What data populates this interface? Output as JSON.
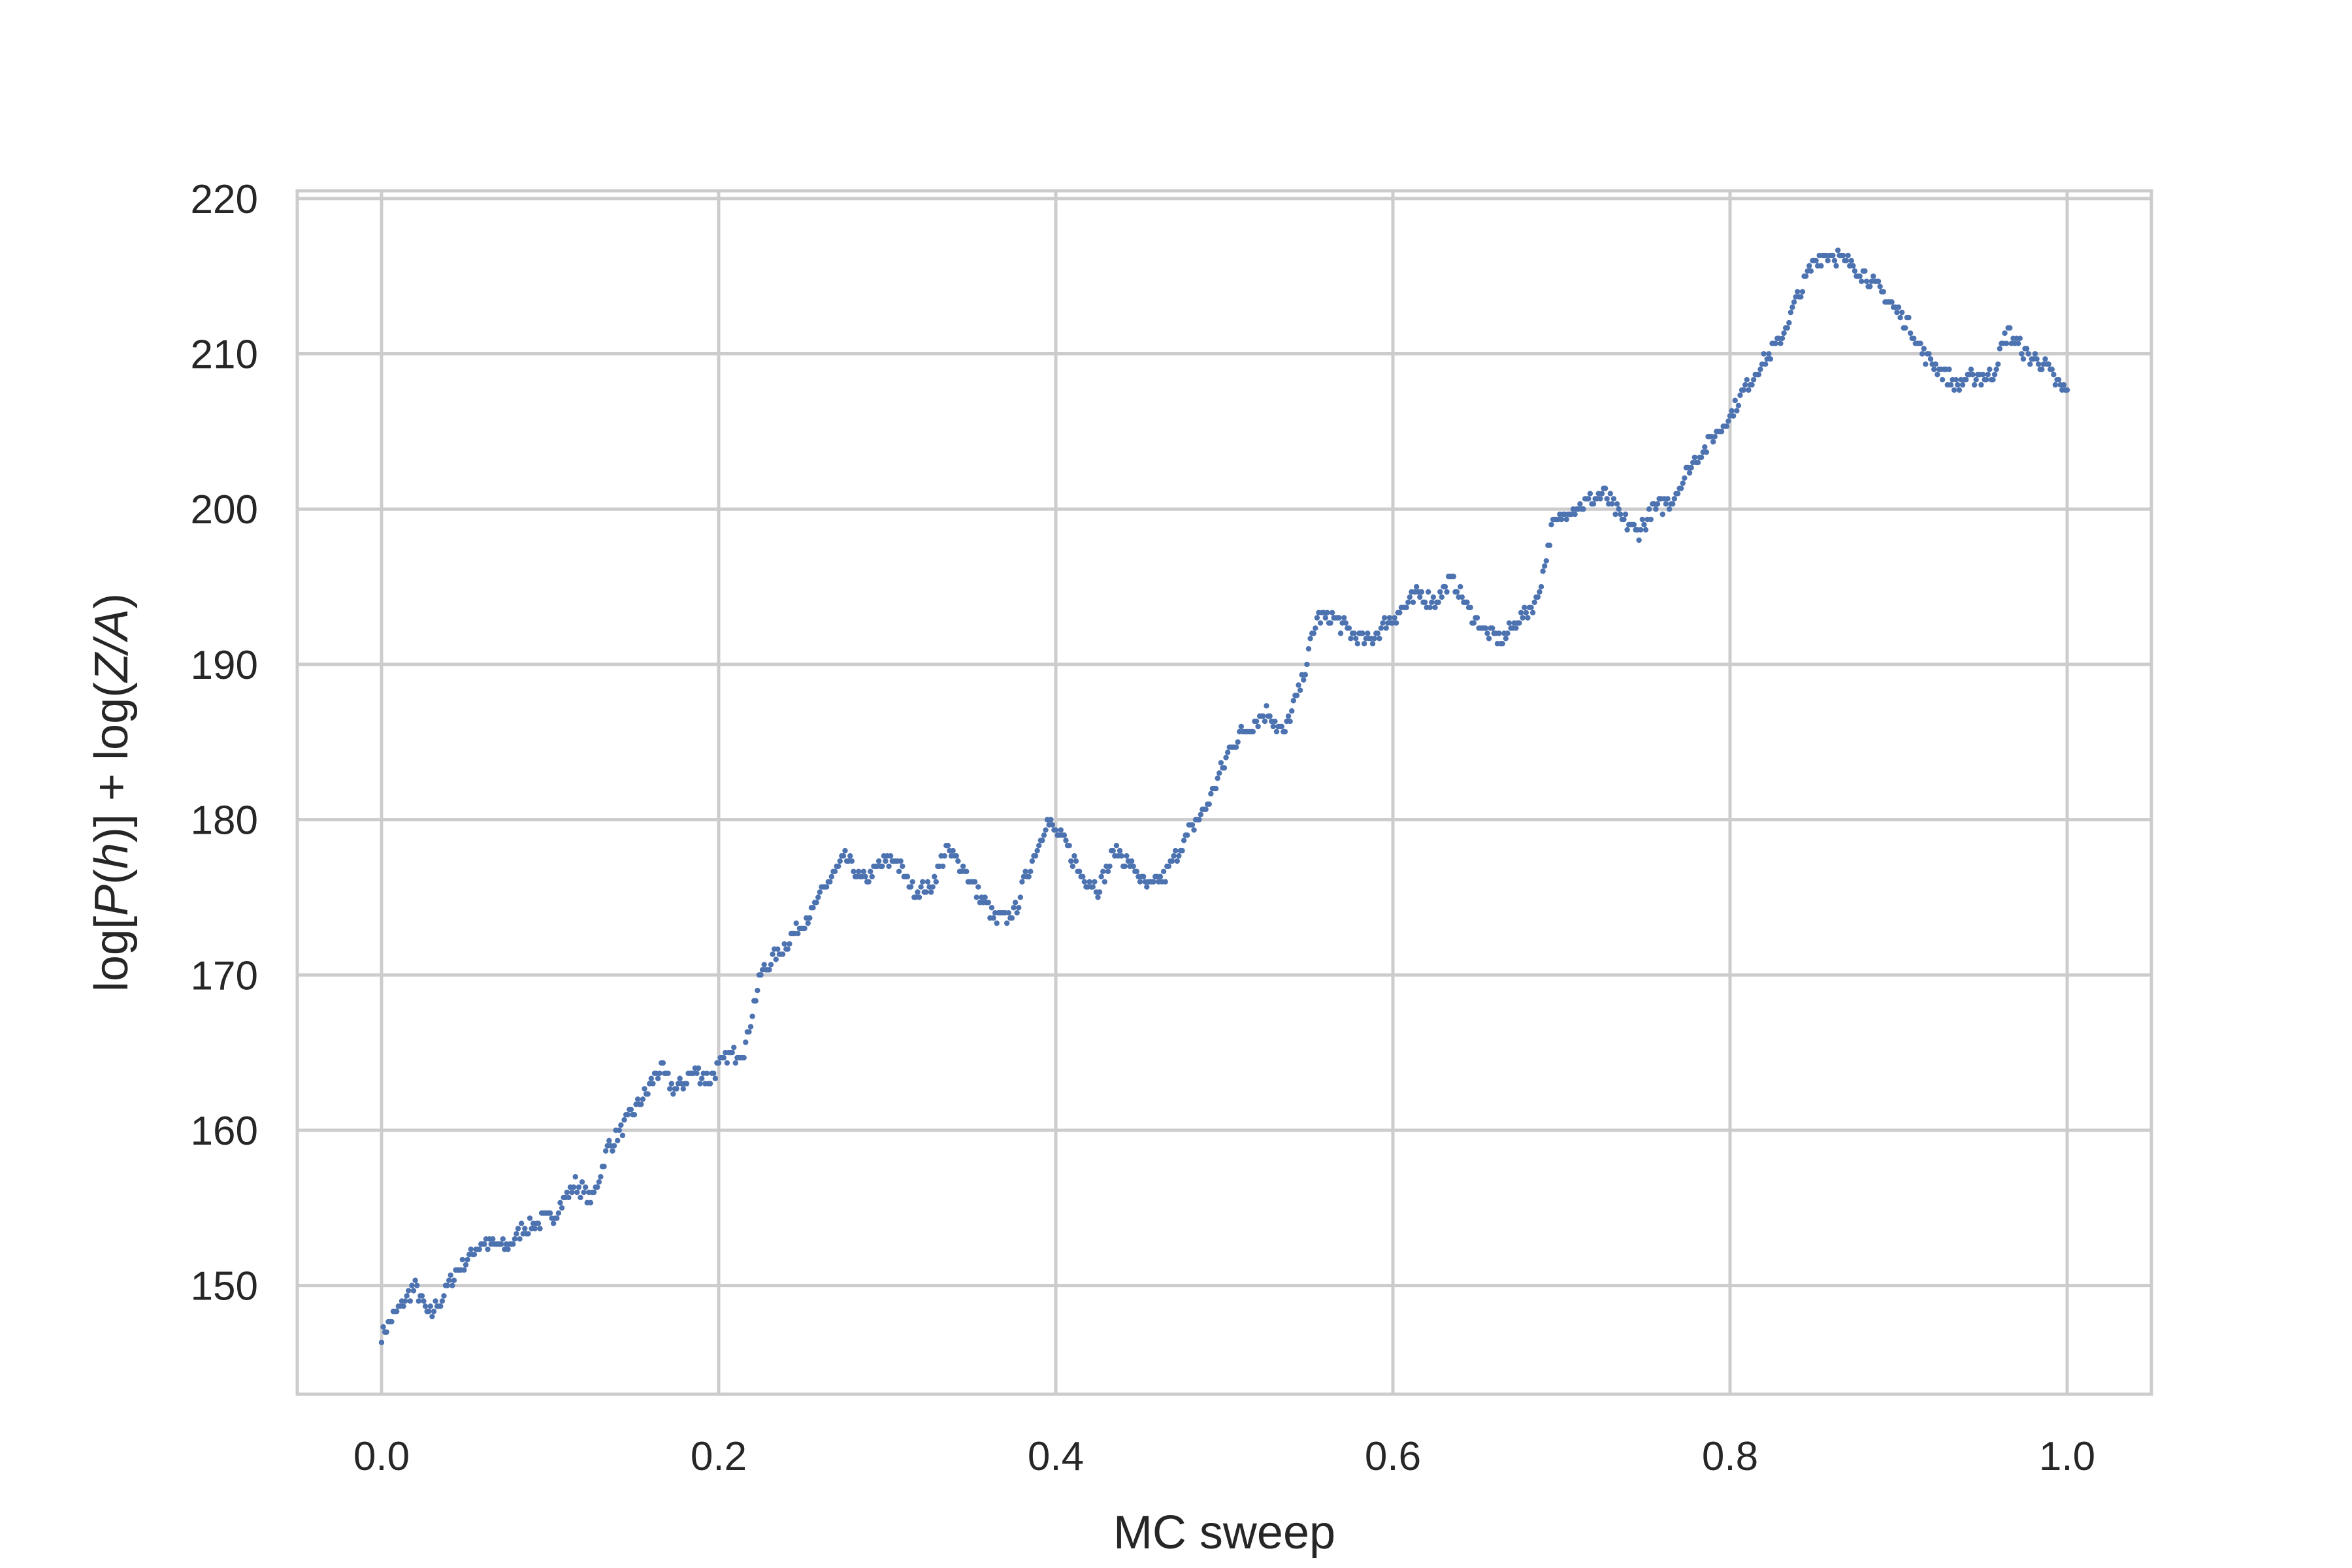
{
  "chart_data": {
    "type": "scatter",
    "title": "",
    "xlabel": "MC sweep",
    "ylabel": {
      "parts": [
        "log[",
        "P",
        "(",
        "h",
        ")] + log(",
        "Z",
        "/",
        "A",
        ")"
      ],
      "italic": [
        false,
        true,
        false,
        true,
        false,
        true,
        true,
        true,
        false
      ]
    },
    "xlim": [
      -0.05,
      1.05
    ],
    "ylim": [
      143,
      220.5
    ],
    "xticks": [
      0.0,
      0.2,
      0.4,
      0.6,
      0.8,
      1.0
    ],
    "xtick_labels": [
      "0.0",
      "0.2",
      "0.4",
      "0.6",
      "0.8",
      "1.0"
    ],
    "yticks": [
      150,
      160,
      170,
      180,
      190,
      200,
      210,
      220
    ],
    "ytick_labels": [
      "150",
      "160",
      "170",
      "180",
      "190",
      "200",
      "210",
      "220"
    ],
    "grid": true,
    "marker_color": "#4c72b0",
    "grid_color": "#cccccc",
    "anchors": [
      [
        0.0,
        146.8
      ],
      [
        0.01,
        148.5
      ],
      [
        0.02,
        150.0
      ],
      [
        0.028,
        148.0
      ],
      [
        0.035,
        149.0
      ],
      [
        0.045,
        151.0
      ],
      [
        0.06,
        152.8
      ],
      [
        0.075,
        152.5
      ],
      [
        0.085,
        153.8
      ],
      [
        0.1,
        154.3
      ],
      [
        0.115,
        156.5
      ],
      [
        0.125,
        155.5
      ],
      [
        0.135,
        159.0
      ],
      [
        0.145,
        160.5
      ],
      [
        0.155,
        162.0
      ],
      [
        0.165,
        164.0
      ],
      [
        0.175,
        162.5
      ],
      [
        0.185,
        163.8
      ],
      [
        0.195,
        163.3
      ],
      [
        0.205,
        164.8
      ],
      [
        0.215,
        165.0
      ],
      [
        0.225,
        170.0
      ],
      [
        0.24,
        172.0
      ],
      [
        0.255,
        174.0
      ],
      [
        0.265,
        176.0
      ],
      [
        0.275,
        177.5
      ],
      [
        0.285,
        176.0
      ],
      [
        0.295,
        177.0
      ],
      [
        0.305,
        177.5
      ],
      [
        0.315,
        175.5
      ],
      [
        0.325,
        175.5
      ],
      [
        0.335,
        178.0
      ],
      [
        0.345,
        177.0
      ],
      [
        0.355,
        175.0
      ],
      [
        0.365,
        173.5
      ],
      [
        0.375,
        174.0
      ],
      [
        0.385,
        177.0
      ],
      [
        0.395,
        180.0
      ],
      [
        0.405,
        178.5
      ],
      [
        0.415,
        176.5
      ],
      [
        0.425,
        175.5
      ],
      [
        0.435,
        178.0
      ],
      [
        0.445,
        177.0
      ],
      [
        0.455,
        175.5
      ],
      [
        0.465,
        176.5
      ],
      [
        0.475,
        178.5
      ],
      [
        0.49,
        181.0
      ],
      [
        0.505,
        185.0
      ],
      [
        0.515,
        186.0
      ],
      [
        0.525,
        187.0
      ],
      [
        0.535,
        185.5
      ],
      [
        0.545,
        188.5
      ],
      [
        0.555,
        193.0
      ],
      [
        0.565,
        193.0
      ],
      [
        0.575,
        192.0
      ],
      [
        0.585,
        191.5
      ],
      [
        0.595,
        192.5
      ],
      [
        0.605,
        193.5
      ],
      [
        0.615,
        194.5
      ],
      [
        0.625,
        194.0
      ],
      [
        0.635,
        195.5
      ],
      [
        0.645,
        193.5
      ],
      [
        0.655,
        192.0
      ],
      [
        0.665,
        191.5
      ],
      [
        0.675,
        193.0
      ],
      [
        0.685,
        194.0
      ],
      [
        0.695,
        199.0
      ],
      [
        0.705,
        200.0
      ],
      [
        0.715,
        200.5
      ],
      [
        0.725,
        201.0
      ],
      [
        0.735,
        199.5
      ],
      [
        0.745,
        198.5
      ],
      [
        0.755,
        200.0
      ],
      [
        0.765,
        200.5
      ],
      [
        0.775,
        202.5
      ],
      [
        0.785,
        204.0
      ],
      [
        0.8,
        206.0
      ],
      [
        0.81,
        208.0
      ],
      [
        0.82,
        209.5
      ],
      [
        0.83,
        211.0
      ],
      [
        0.84,
        213.5
      ],
      [
        0.85,
        216.0
      ],
      [
        0.86,
        216.5
      ],
      [
        0.875,
        215.5
      ],
      [
        0.89,
        214.0
      ],
      [
        0.905,
        212.0
      ],
      [
        0.915,
        210.0
      ],
      [
        0.925,
        209.0
      ],
      [
        0.935,
        208.0
      ],
      [
        0.945,
        208.5
      ],
      [
        0.955,
        208.5
      ],
      [
        0.965,
        211.5
      ],
      [
        0.975,
        210.0
      ],
      [
        0.985,
        209.5
      ],
      [
        0.995,
        208.0
      ],
      [
        1.0,
        207.5
      ]
    ]
  }
}
